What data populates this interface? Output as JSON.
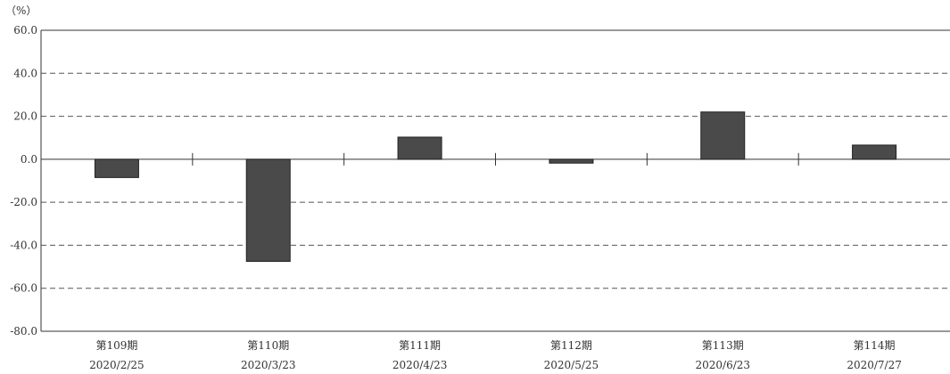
{
  "chart_data": {
    "type": "bar",
    "unit_label": "（%）",
    "title": "",
    "xlabel": "",
    "ylabel": "",
    "ylim": [
      -80,
      60
    ],
    "yticks": [
      "60.0",
      "40.0",
      "20.0",
      "0.0",
      "-20.0",
      "-40.0",
      "-60.0",
      "-80.0"
    ],
    "ytick_values": [
      60,
      40,
      20,
      0,
      -20,
      -40,
      -60,
      -80
    ],
    "grid": "dashed-horizontal",
    "categories": [
      {
        "period": "第109期",
        "date": "2020/2/25"
      },
      {
        "period": "第110期",
        "date": "2020/3/23"
      },
      {
        "period": "第111期",
        "date": "2020/4/23"
      },
      {
        "period": "第112期",
        "date": "2020/5/25"
      },
      {
        "period": "第113期",
        "date": "2020/6/23"
      },
      {
        "period": "第114期",
        "date": "2020/7/27"
      }
    ],
    "values": [
      -8.5,
      -47.5,
      10.3,
      -1.8,
      22.0,
      6.6
    ],
    "bar_color": "#4a4a4a"
  }
}
